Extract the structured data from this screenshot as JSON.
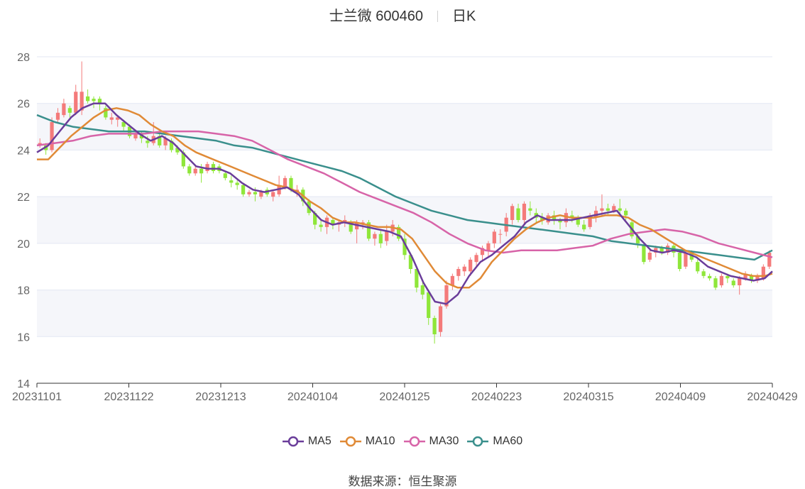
{
  "header": {
    "stock_label": "士兰微 600460",
    "period_label": "日K"
  },
  "source": {
    "label": "数据来源：",
    "value": "恒生聚源"
  },
  "colors": {
    "up": "#f47a7a",
    "down": "#8fe63a",
    "MA5": "#6a3d9a",
    "MA10": "#e08a36",
    "MA30": "#d764a8",
    "MA60": "#3a8f8c",
    "band": "#f5f6fa",
    "grid": "#e3e7f3"
  },
  "chart_data": {
    "type": "candlestick",
    "title": "士兰微 600460",
    "ylim": [
      14,
      28
    ],
    "yticks": [
      14,
      16,
      18,
      20,
      22,
      24,
      26,
      28
    ],
    "xticks": [
      "20231101",
      "20231122",
      "20231213",
      "20240104",
      "20240125",
      "20240223",
      "20240315",
      "20240409",
      "20240429"
    ],
    "legend": [
      "MA5",
      "MA10",
      "MA30",
      "MA60"
    ],
    "candles": [
      [
        24.2,
        24.3,
        24.5,
        24.1
      ],
      [
        24.2,
        24.0,
        24.3,
        23.8
      ],
      [
        24.0,
        25.2,
        25.4,
        23.9
      ],
      [
        25.3,
        25.6,
        25.8,
        25.2
      ],
      [
        25.5,
        26.0,
        26.2,
        25.4
      ],
      [
        25.8,
        25.6,
        25.9,
        25.4
      ],
      [
        25.6,
        26.5,
        26.8,
        25.5
      ],
      [
        25.7,
        26.5,
        27.8,
        25.5
      ],
      [
        26.3,
        26.1,
        26.6,
        26.0
      ],
      [
        26.2,
        26.1,
        26.3,
        25.8
      ],
      [
        26.2,
        26.0,
        26.3,
        25.7
      ],
      [
        25.8,
        25.4,
        25.9,
        25.3
      ],
      [
        25.3,
        25.4,
        25.6,
        25.1
      ],
      [
        25.3,
        25.4,
        25.5,
        25.0
      ],
      [
        25.2,
        25.0,
        25.3,
        24.8
      ],
      [
        25.0,
        24.6,
        25.1,
        24.5
      ],
      [
        24.5,
        24.7,
        24.8,
        24.4
      ],
      [
        24.7,
        24.5,
        24.8,
        24.3
      ],
      [
        24.4,
        24.3,
        24.6,
        24.1
      ],
      [
        24.3,
        24.6,
        25.2,
        24.2
      ],
      [
        24.6,
        24.2,
        24.7,
        24.1
      ],
      [
        24.2,
        24.5,
        24.6,
        24.0
      ],
      [
        24.4,
        24.0,
        24.5,
        23.9
      ],
      [
        24.1,
        23.9,
        24.2,
        23.8
      ],
      [
        23.9,
        23.3,
        24.0,
        23.2
      ],
      [
        23.3,
        23.0,
        23.4,
        22.9
      ],
      [
        23.0,
        23.2,
        23.3,
        22.9
      ],
      [
        23.2,
        23.0,
        23.4,
        22.6
      ],
      [
        23.1,
        23.4,
        23.5,
        23.0
      ],
      [
        23.4,
        23.1,
        23.5,
        23.0
      ],
      [
        23.3,
        23.1,
        23.4,
        23.0
      ],
      [
        23.0,
        22.8,
        23.1,
        22.7
      ],
      [
        22.7,
        22.6,
        22.9,
        22.4
      ],
      [
        22.6,
        22.5,
        22.7,
        22.3
      ],
      [
        22.5,
        22.1,
        22.6,
        22.0
      ],
      [
        22.1,
        22.2,
        22.3,
        22.0
      ],
      [
        22.2,
        22.1,
        22.4,
        21.8
      ],
      [
        22.0,
        22.2,
        22.3,
        21.9
      ],
      [
        22.3,
        22.1,
        22.4,
        22.0
      ],
      [
        22.0,
        22.2,
        22.3,
        21.8
      ],
      [
        22.1,
        22.5,
        22.9,
        22.0
      ],
      [
        22.4,
        22.8,
        22.9,
        22.3
      ],
      [
        22.8,
        22.3,
        22.9,
        22.2
      ],
      [
        22.2,
        22.3,
        22.5,
        22.0
      ],
      [
        22.3,
        21.8,
        22.4,
        21.6
      ],
      [
        21.8,
        21.3,
        21.9,
        21.2
      ],
      [
        21.3,
        20.8,
        21.4,
        20.6
      ],
      [
        20.8,
        20.7,
        21.0,
        20.5
      ],
      [
        20.7,
        21.1,
        21.2,
        20.4
      ],
      [
        21.0,
        20.8,
        21.1,
        20.6
      ],
      [
        20.8,
        20.9,
        21.0,
        20.5
      ],
      [
        20.9,
        21.0,
        21.2,
        20.7
      ],
      [
        20.9,
        20.5,
        21.0,
        20.4
      ],
      [
        20.6,
        20.9,
        21.0,
        20.0
      ],
      [
        20.8,
        20.9,
        21.0,
        20.6
      ],
      [
        20.9,
        20.2,
        21.0,
        20.1
      ],
      [
        20.2,
        20.4,
        20.5,
        19.9
      ],
      [
        20.4,
        20.0,
        20.6,
        19.8
      ],
      [
        20.1,
        20.5,
        20.8,
        19.9
      ],
      [
        20.5,
        20.8,
        21.0,
        20.3
      ],
      [
        20.7,
        20.2,
        20.8,
        20.1
      ],
      [
        20.2,
        19.5,
        20.4,
        19.3
      ],
      [
        19.5,
        18.9,
        19.6,
        18.7
      ],
      [
        18.9,
        18.1,
        19.0,
        17.9
      ],
      [
        18.2,
        17.8,
        18.4,
        17.6
      ],
      [
        17.9,
        16.8,
        18.0,
        16.5
      ],
      [
        16.8,
        16.1,
        16.9,
        15.7
      ],
      [
        16.2,
        17.3,
        17.4,
        16.0
      ],
      [
        17.3,
        18.2,
        18.4,
        17.2
      ],
      [
        18.2,
        18.6,
        18.7,
        18.0
      ],
      [
        18.6,
        18.9,
        19.0,
        18.4
      ],
      [
        18.8,
        19.0,
        19.1,
        18.6
      ],
      [
        18.8,
        19.3,
        19.4,
        18.6
      ],
      [
        19.2,
        19.5,
        19.6,
        19.0
      ],
      [
        19.5,
        19.8,
        19.9,
        19.2
      ],
      [
        19.7,
        20.0,
        20.1,
        19.4
      ],
      [
        20.0,
        20.5,
        20.6,
        19.8
      ],
      [
        20.4,
        20.4,
        20.6,
        20.0
      ],
      [
        20.5,
        21.1,
        21.3,
        20.3
      ],
      [
        21.0,
        21.6,
        21.7,
        20.8
      ],
      [
        21.5,
        21.0,
        21.7,
        20.9
      ],
      [
        21.0,
        21.7,
        21.8,
        20.8
      ],
      [
        21.5,
        21.4,
        21.8,
        21.2
      ],
      [
        21.3,
        21.1,
        21.5,
        20.9
      ],
      [
        21.1,
        21.0,
        21.3,
        20.8
      ],
      [
        20.9,
        21.2,
        21.3,
        20.8
      ],
      [
        21.2,
        21.0,
        21.4,
        20.8
      ],
      [
        21.0,
        20.9,
        21.1,
        20.6
      ],
      [
        20.9,
        21.3,
        21.5,
        20.7
      ],
      [
        21.2,
        21.1,
        21.4,
        20.9
      ],
      [
        21.1,
        20.8,
        21.2,
        20.7
      ],
      [
        20.8,
        20.6,
        21.0,
        20.5
      ],
      [
        20.7,
        21.2,
        21.3,
        20.6
      ],
      [
        21.1,
        21.4,
        21.6,
        20.9
      ],
      [
        21.4,
        21.5,
        22.1,
        21.2
      ],
      [
        21.5,
        21.4,
        21.7,
        21.2
      ],
      [
        21.4,
        21.6,
        21.7,
        21.3
      ],
      [
        21.5,
        21.4,
        21.9,
        21.2
      ],
      [
        21.4,
        21.2,
        21.5,
        21.0
      ],
      [
        20.9,
        20.3,
        21.0,
        20.2
      ],
      [
        20.3,
        20.0,
        20.4,
        19.8
      ],
      [
        19.9,
        19.2,
        20.0,
        19.1
      ],
      [
        19.3,
        19.6,
        19.7,
        19.2
      ],
      [
        19.6,
        19.8,
        19.9,
        19.4
      ],
      [
        19.8,
        19.6,
        19.9,
        19.5
      ],
      [
        19.6,
        19.9,
        20.0,
        19.5
      ],
      [
        19.9,
        19.6,
        20.0,
        19.4
      ],
      [
        19.6,
        18.9,
        19.7,
        18.8
      ],
      [
        19.0,
        19.6,
        19.7,
        18.9
      ],
      [
        19.6,
        19.3,
        19.7,
        19.2
      ],
      [
        19.2,
        18.8,
        19.3,
        18.7
      ],
      [
        18.8,
        18.6,
        18.9,
        18.5
      ],
      [
        18.6,
        18.5,
        18.7,
        18.4
      ],
      [
        18.5,
        18.1,
        18.6,
        18.0
      ],
      [
        18.2,
        18.6,
        18.7,
        18.1
      ],
      [
        18.6,
        18.5,
        18.7,
        18.3
      ],
      [
        18.4,
        18.2,
        18.5,
        18.1
      ],
      [
        18.2,
        18.5,
        18.6,
        17.8
      ],
      [
        18.5,
        18.7,
        18.8,
        18.4
      ],
      [
        18.6,
        18.4,
        18.7,
        18.3
      ],
      [
        18.4,
        18.6,
        18.7,
        18.3
      ],
      [
        18.5,
        19.0,
        19.1,
        18.4
      ],
      [
        19.0,
        19.6,
        19.7,
        18.9
      ]
    ],
    "ma5": [
      [
        0,
        23.9
      ],
      [
        3,
        24.2
      ],
      [
        6,
        24.8
      ],
      [
        9,
        25.4
      ],
      [
        12,
        25.8
      ],
      [
        15,
        26.0
      ],
      [
        18,
        26.0
      ],
      [
        21,
        25.5
      ],
      [
        24,
        25.1
      ],
      [
        27,
        24.7
      ],
      [
        30,
        24.4
      ],
      [
        33,
        24.6
      ],
      [
        36,
        24.3
      ],
      [
        39,
        23.8
      ],
      [
        42,
        23.3
      ],
      [
        45,
        23.2
      ],
      [
        48,
        23.2
      ],
      [
        51,
        23.0
      ],
      [
        54,
        22.6
      ],
      [
        57,
        22.3
      ],
      [
        60,
        22.2
      ],
      [
        63,
        22.3
      ],
      [
        66,
        22.4
      ],
      [
        69,
        22.1
      ],
      [
        72,
        21.5
      ],
      [
        75,
        21.0
      ],
      [
        78,
        20.8
      ],
      [
        81,
        20.9
      ],
      [
        84,
        20.8
      ],
      [
        87,
        20.7
      ],
      [
        90,
        20.6
      ],
      [
        93,
        20.5
      ],
      [
        96,
        20.3
      ],
      [
        99,
        19.4
      ],
      [
        102,
        18.3
      ],
      [
        105,
        17.5
      ],
      [
        108,
        17.4
      ],
      [
        111,
        17.8
      ],
      [
        114,
        18.6
      ],
      [
        117,
        19.2
      ],
      [
        120,
        19.5
      ],
      [
        123,
        19.9
      ],
      [
        126,
        20.3
      ],
      [
        129,
        20.9
      ],
      [
        132,
        21.2
      ],
      [
        135,
        21.0
      ],
      [
        138,
        21.0
      ],
      [
        141,
        21.0
      ],
      [
        144,
        21.1
      ],
      [
        147,
        21.2
      ],
      [
        150,
        21.3
      ],
      [
        153,
        21.4
      ],
      [
        156,
        20.8
      ],
      [
        159,
        20.2
      ],
      [
        162,
        19.7
      ],
      [
        165,
        19.6
      ],
      [
        168,
        19.7
      ],
      [
        171,
        19.6
      ],
      [
        174,
        19.4
      ],
      [
        177,
        19.0
      ],
      [
        180,
        18.8
      ],
      [
        183,
        18.6
      ],
      [
        186,
        18.5
      ],
      [
        189,
        18.4
      ],
      [
        192,
        18.5
      ],
      [
        194,
        18.8
      ]
    ],
    "ma10": [
      [
        0,
        23.6
      ],
      [
        3,
        23.6
      ],
      [
        6,
        24.1
      ],
      [
        9,
        24.6
      ],
      [
        12,
        25.0
      ],
      [
        15,
        25.4
      ],
      [
        18,
        25.7
      ],
      [
        21,
        25.8
      ],
      [
        24,
        25.7
      ],
      [
        27,
        25.5
      ],
      [
        30,
        25.1
      ],
      [
        33,
        24.8
      ],
      [
        36,
        24.6
      ],
      [
        39,
        24.2
      ],
      [
        42,
        23.9
      ],
      [
        45,
        23.7
      ],
      [
        48,
        23.5
      ],
      [
        51,
        23.3
      ],
      [
        54,
        23.1
      ],
      [
        57,
        22.9
      ],
      [
        60,
        22.7
      ],
      [
        63,
        22.5
      ],
      [
        66,
        22.4
      ],
      [
        69,
        22.2
      ],
      [
        72,
        21.8
      ],
      [
        75,
        21.5
      ],
      [
        78,
        21.1
      ],
      [
        81,
        20.9
      ],
      [
        84,
        20.9
      ],
      [
        87,
        20.8
      ],
      [
        90,
        20.7
      ],
      [
        93,
        20.7
      ],
      [
        96,
        20.6
      ],
      [
        99,
        20.2
      ],
      [
        102,
        19.5
      ],
      [
        105,
        18.8
      ],
      [
        108,
        18.3
      ],
      [
        111,
        18.1
      ],
      [
        114,
        18.1
      ],
      [
        117,
        18.5
      ],
      [
        120,
        19.2
      ],
      [
        123,
        19.7
      ],
      [
        126,
        20.2
      ],
      [
        129,
        20.6
      ],
      [
        132,
        20.9
      ],
      [
        135,
        21.1
      ],
      [
        138,
        21.2
      ],
      [
        141,
        21.1
      ],
      [
        144,
        21.1
      ],
      [
        147,
        21.1
      ],
      [
        150,
        21.2
      ],
      [
        153,
        21.2
      ],
      [
        156,
        21.1
      ],
      [
        159,
        20.8
      ],
      [
        162,
        20.6
      ],
      [
        165,
        20.3
      ],
      [
        168,
        20.0
      ],
      [
        171,
        19.7
      ],
      [
        174,
        19.5
      ],
      [
        177,
        19.3
      ],
      [
        180,
        19.1
      ],
      [
        183,
        18.9
      ],
      [
        186,
        18.7
      ],
      [
        189,
        18.6
      ],
      [
        192,
        18.6
      ],
      [
        194,
        18.7
      ]
    ],
    "ma30": [
      [
        0,
        24.2
      ],
      [
        6,
        24.3
      ],
      [
        12,
        24.4
      ],
      [
        18,
        24.6
      ],
      [
        24,
        24.7
      ],
      [
        30,
        24.7
      ],
      [
        36,
        24.7
      ],
      [
        42,
        24.8
      ],
      [
        48,
        24.8
      ],
      [
        54,
        24.8
      ],
      [
        60,
        24.7
      ],
      [
        66,
        24.6
      ],
      [
        72,
        24.4
      ],
      [
        78,
        24.0
      ],
      [
        84,
        23.6
      ],
      [
        90,
        23.3
      ],
      [
        96,
        23.0
      ],
      [
        102,
        22.6
      ],
      [
        108,
        22.2
      ],
      [
        114,
        21.9
      ],
      [
        120,
        21.6
      ],
      [
        126,
        21.3
      ],
      [
        132,
        20.9
      ],
      [
        138,
        20.4
      ],
      [
        144,
        20.0
      ],
      [
        150,
        19.7
      ],
      [
        156,
        19.6
      ],
      [
        162,
        19.7
      ],
      [
        168,
        19.7
      ],
      [
        174,
        19.7
      ],
      [
        180,
        19.8
      ],
      [
        186,
        19.9
      ],
      [
        192,
        20.2
      ],
      [
        198,
        20.4
      ],
      [
        204,
        20.5
      ],
      [
        210,
        20.6
      ],
      [
        216,
        20.5
      ],
      [
        222,
        20.3
      ],
      [
        228,
        20.0
      ],
      [
        234,
        19.8
      ],
      [
        240,
        19.6
      ],
      [
        246,
        19.4
      ]
    ],
    "ma60": [
      [
        0,
        25.5
      ],
      [
        6,
        25.2
      ],
      [
        12,
        25.0
      ],
      [
        18,
        24.9
      ],
      [
        24,
        24.8
      ],
      [
        30,
        24.8
      ],
      [
        36,
        24.8
      ],
      [
        42,
        24.7
      ],
      [
        48,
        24.6
      ],
      [
        54,
        24.5
      ],
      [
        60,
        24.4
      ],
      [
        66,
        24.2
      ],
      [
        72,
        24.1
      ],
      [
        78,
        23.9
      ],
      [
        84,
        23.7
      ],
      [
        90,
        23.5
      ],
      [
        96,
        23.3
      ],
      [
        102,
        23.1
      ],
      [
        108,
        22.8
      ],
      [
        114,
        22.4
      ],
      [
        120,
        22.0
      ],
      [
        126,
        21.7
      ],
      [
        132,
        21.4
      ],
      [
        138,
        21.2
      ],
      [
        144,
        21.0
      ],
      [
        150,
        20.9
      ],
      [
        156,
        20.8
      ],
      [
        162,
        20.7
      ],
      [
        168,
        20.6
      ],
      [
        174,
        20.5
      ],
      [
        180,
        20.4
      ],
      [
        186,
        20.3
      ],
      [
        192,
        20.1
      ],
      [
        198,
        20.0
      ],
      [
        204,
        19.9
      ],
      [
        210,
        19.8
      ],
      [
        216,
        19.7
      ],
      [
        222,
        19.6
      ],
      [
        228,
        19.5
      ],
      [
        234,
        19.4
      ],
      [
        240,
        19.3
      ],
      [
        246,
        19.7
      ]
    ]
  }
}
